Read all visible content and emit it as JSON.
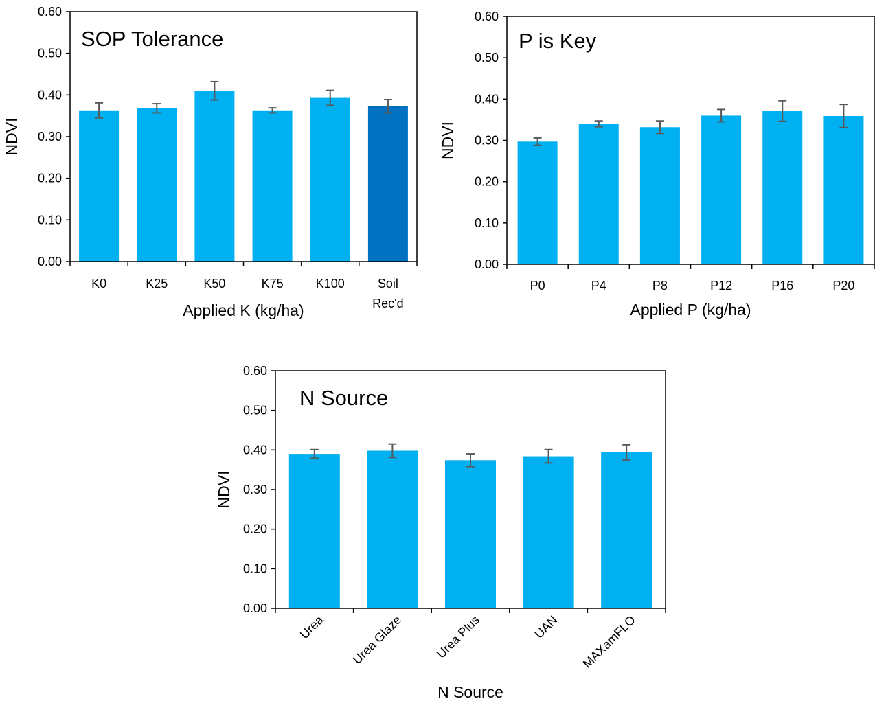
{
  "chart_data": [
    {
      "type": "bar",
      "title": "SOP Tolerance",
      "xlabel": "Applied K (kg/ha)",
      "ylabel": "NDVI",
      "ylim": [
        0,
        0.6
      ],
      "yticks": [
        "0.00",
        "0.10",
        "0.20",
        "0.30",
        "0.40",
        "0.50",
        "0.60"
      ],
      "categories": [
        [
          "K0"
        ],
        [
          "K25"
        ],
        [
          "K50"
        ],
        [
          "K75"
        ],
        [
          "K100"
        ],
        [
          "Soil",
          "Rec'd"
        ]
      ],
      "values": [
        0.363,
        0.368,
        0.41,
        0.363,
        0.393,
        0.373
      ],
      "errors": [
        0.018,
        0.011,
        0.022,
        0.006,
        0.018,
        0.016
      ],
      "colors": [
        "#00B0F0",
        "#00B0F0",
        "#00B0F0",
        "#00B0F0",
        "#00B0F0",
        "#0070C0"
      ],
      "grid": false,
      "rotate_labels": false
    },
    {
      "type": "bar",
      "title": "P is Key",
      "xlabel": "Applied P (kg/ha)",
      "ylabel": "NDVI",
      "ylim": [
        0,
        0.6
      ],
      "yticks": [
        "0.00",
        "0.10",
        "0.20",
        "0.30",
        "0.40",
        "0.50",
        "0.60"
      ],
      "categories": [
        [
          "P0"
        ],
        [
          "P4"
        ],
        [
          "P8"
        ],
        [
          "P12"
        ],
        [
          "P16"
        ],
        [
          "P20"
        ]
      ],
      "values": [
        0.297,
        0.34,
        0.332,
        0.36,
        0.371,
        0.359
      ],
      "errors": [
        0.009,
        0.007,
        0.015,
        0.015,
        0.025,
        0.028
      ],
      "colors": [
        "#00B0F0",
        "#00B0F0",
        "#00B0F0",
        "#00B0F0",
        "#00B0F0",
        "#00B0F0"
      ],
      "grid": false,
      "rotate_labels": false
    },
    {
      "type": "bar",
      "title": "N Source",
      "xlabel": "N Source",
      "ylabel": "NDVI",
      "ylim": [
        0,
        0.6
      ],
      "yticks": [
        "0.00",
        "0.10",
        "0.20",
        "0.30",
        "0.40",
        "0.50",
        "0.60"
      ],
      "categories": [
        [
          "Urea"
        ],
        [
          "Urea Glaze"
        ],
        [
          "Urea Plus"
        ],
        [
          "UAN"
        ],
        [
          "MAXamFLO"
        ]
      ],
      "values": [
        0.39,
        0.398,
        0.374,
        0.384,
        0.394
      ],
      "errors": [
        0.011,
        0.017,
        0.016,
        0.017,
        0.019
      ],
      "colors": [
        "#00B0F0",
        "#00B0F0",
        "#00B0F0",
        "#00B0F0",
        "#00B0F0"
      ],
      "grid": false,
      "rotate_labels": true
    }
  ]
}
